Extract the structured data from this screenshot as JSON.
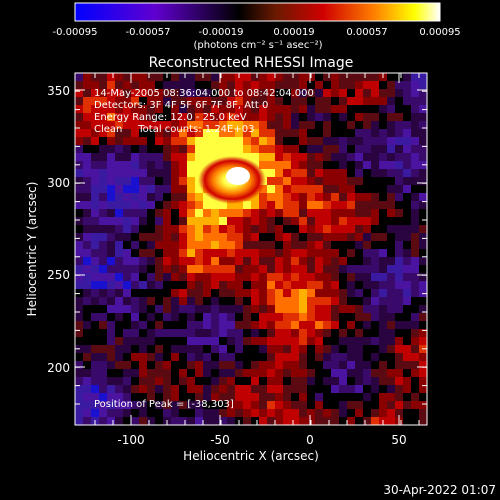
{
  "colorbar": {
    "ticks": [
      "-0.00095",
      "-0.00057",
      "-0.00019",
      "0.00019",
      "0.00057",
      "0.00095"
    ],
    "units": "(photons cm⁻² s⁻¹ asec⁻²)",
    "colors": [
      "#0000ff",
      "#6000d0",
      "#000000",
      "#6a1a00",
      "#d00000",
      "#ff8000",
      "#ffff00",
      "#ffffff"
    ]
  },
  "title": "Reconstructed RHESSI Image",
  "annotations": {
    "time": "14-May-2005 08:36:04.000 to 08:42:04.000",
    "detectors": "Detectors: 3F 4F 5F 6F 7F 8F, Att 0",
    "energy": "Energy Range: 12.0 - 25.0 keV",
    "clean": "Clean     Total counts: 1.24E+03",
    "peak": "Position of Peak = [-38,303]"
  },
  "axes": {
    "xlabel": "Heliocentric X (arcsec)",
    "ylabel": "Heliocentric Y (arcsec)",
    "xticks": [
      "-100",
      "-50",
      "0",
      "50"
    ],
    "yticks": [
      "200",
      "250",
      "300",
      "350"
    ],
    "xlim": [
      -130,
      65
    ],
    "ylim": [
      172,
      362
    ]
  },
  "footer": {
    "timestamp": "30-Apr-2022 01:07"
  }
}
